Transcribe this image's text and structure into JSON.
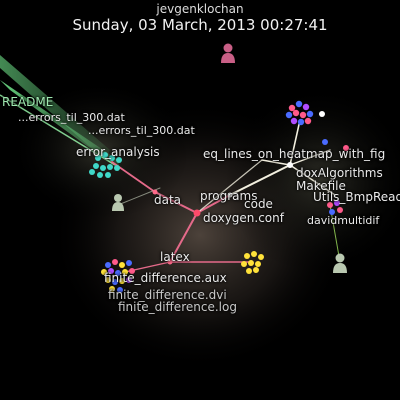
{
  "header": {
    "user": "jevgenklochan",
    "datetime": "Sunday, 03 March, 2013 00:27:41"
  },
  "labels": {
    "data": "data",
    "programs": "programs",
    "code": "code",
    "doxygen_conf": "doxygen.conf",
    "latex": "latex",
    "error_analysis": "error_analysis",
    "readme": "README",
    "dat_file": "...errors_til_300.dat",
    "finite_difference_aux": "finite_difference.aux",
    "finite_difference_dvi": "finite_difference.dvi",
    "finite_difference_log": "finite_difference.log",
    "eq_lines": "eq_lines_on_heatmap_with_fig",
    "dox_algorithms": "doxAlgorithms",
    "makefile": "Makefile",
    "utils_bmp": "Utils_BmpRead",
    "david": "davidmultidif"
  },
  "colors": {
    "background": "#000000",
    "edge_pink": "#e56a8a",
    "edge_white": "#f3f0e0",
    "edge_green": "#7dff9a",
    "node_yellow": "#ffe23a",
    "node_teal": "#3fd8c8",
    "node_pink": "#ff5a8a",
    "node_blue": "#4a6bff",
    "node_purple": "#b04cff",
    "user_pink": "#c95f86",
    "user_gray": "#b9c8b0"
  }
}
